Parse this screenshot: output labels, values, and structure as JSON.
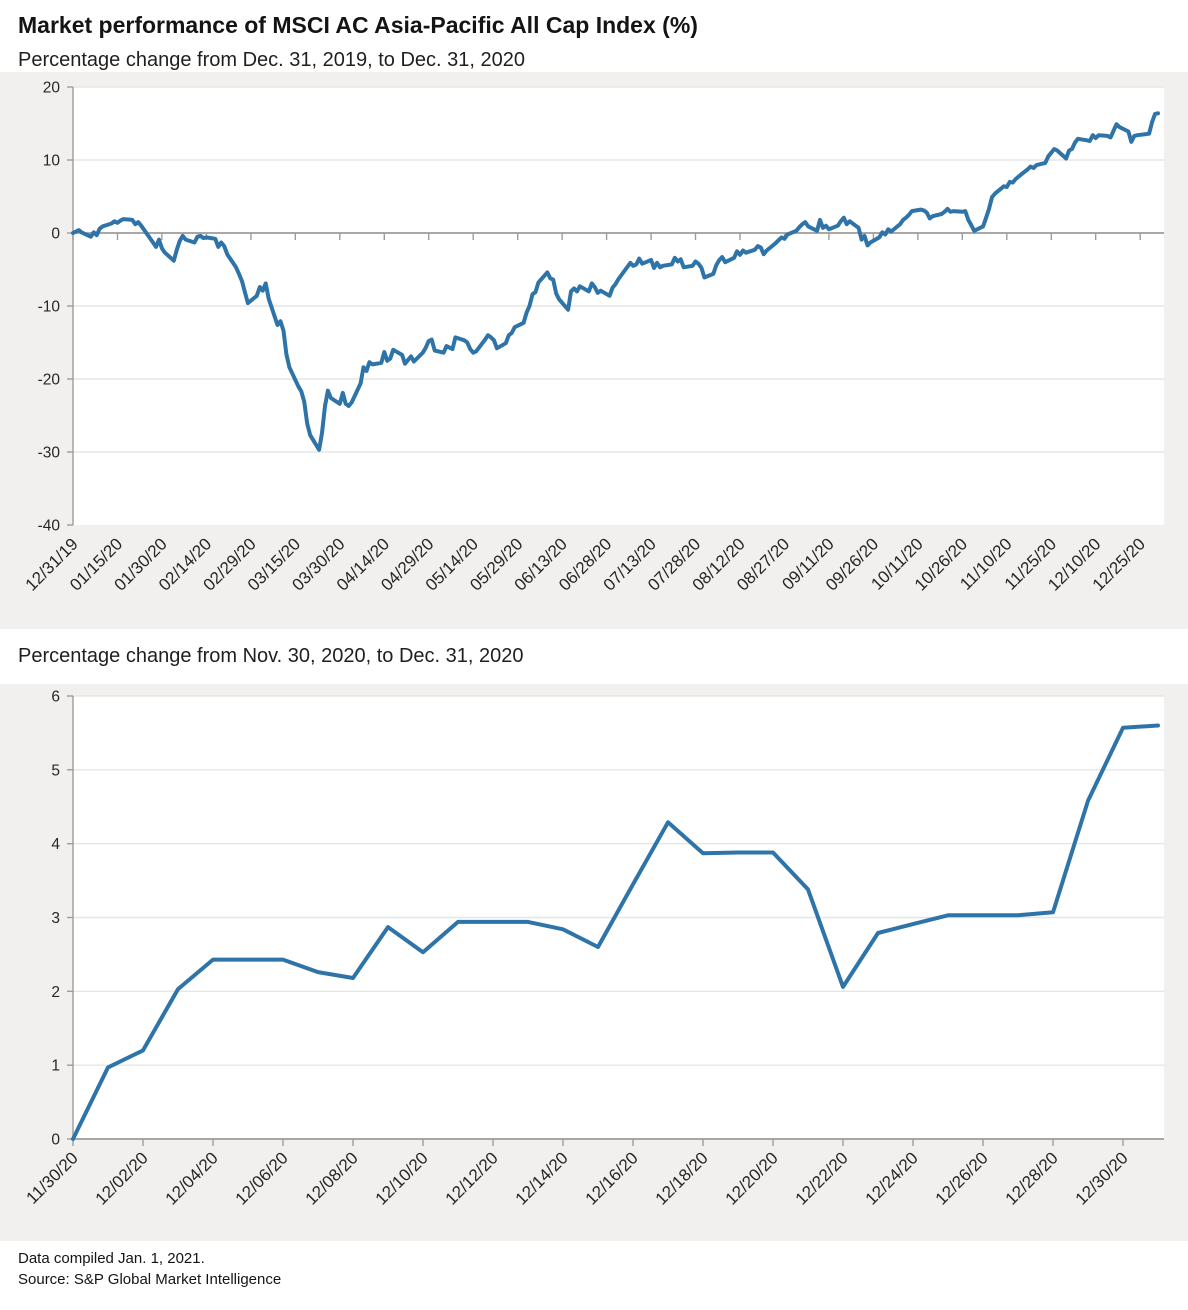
{
  "header": {
    "title": "Market performance of MSCI AC Asia-Pacific All Cap Index (%)"
  },
  "footer": {
    "compiled": "Data compiled Jan. 1, 2021.",
    "source": "Source: S&P Global Market Intelligence"
  },
  "colors": {
    "line": "#2e74a8",
    "axis": "#9d9c9a",
    "grid": "#e7e6e4",
    "panel_bg": "#f1f0ee",
    "plot_bg": "#ffffff",
    "tick_text": "#262626"
  },
  "chart_data": [
    {
      "id": "top",
      "type": "line",
      "title": "Percentage change from Dec. 31, 2019, to Dec. 31, 2020",
      "ylabel": "",
      "xlabel": "",
      "ylim": [
        -40,
        20
      ],
      "yticks": [
        20,
        10,
        0,
        -10,
        -20,
        -30,
        -40
      ],
      "grid_vals": [
        20,
        10,
        -10,
        -20,
        -30
      ],
      "axis_value": 0,
      "x_domain_days": 366,
      "xticks": [
        {
          "day": 0,
          "label": "12/31/19"
        },
        {
          "day": 15,
          "label": "01/15/20"
        },
        {
          "day": 30,
          "label": "01/30/20"
        },
        {
          "day": 45,
          "label": "02/14/20"
        },
        {
          "day": 60,
          "label": "02/29/20"
        },
        {
          "day": 75,
          "label": "03/15/20"
        },
        {
          "day": 90,
          "label": "03/30/20"
        },
        {
          "day": 105,
          "label": "04/14/20"
        },
        {
          "day": 120,
          "label": "04/29/20"
        },
        {
          "day": 135,
          "label": "05/14/20"
        },
        {
          "day": 150,
          "label": "05/29/20"
        },
        {
          "day": 165,
          "label": "06/13/20"
        },
        {
          "day": 180,
          "label": "06/28/20"
        },
        {
          "day": 195,
          "label": "07/13/20"
        },
        {
          "day": 210,
          "label": "07/28/20"
        },
        {
          "day": 225,
          "label": "08/12/20"
        },
        {
          "day": 240,
          "label": "08/27/20"
        },
        {
          "day": 255,
          "label": "09/11/20"
        },
        {
          "day": 270,
          "label": "09/26/20"
        },
        {
          "day": 285,
          "label": "10/11/20"
        },
        {
          "day": 300,
          "label": "10/26/20"
        },
        {
          "day": 315,
          "label": "11/10/20"
        },
        {
          "day": 330,
          "label": "11/25/20"
        },
        {
          "day": 345,
          "label": "12/10/20"
        },
        {
          "day": 360,
          "label": "12/25/20"
        }
      ],
      "points": [
        [
          0,
          0.0
        ],
        [
          2,
          0.4
        ],
        [
          3,
          0.05
        ],
        [
          6,
          -0.5
        ],
        [
          7,
          0.1
        ],
        [
          8,
          -0.3
        ],
        [
          9,
          0.6
        ],
        [
          10,
          0.9
        ],
        [
          13,
          1.3
        ],
        [
          14,
          1.6
        ],
        [
          15,
          1.4
        ],
        [
          16,
          1.7
        ],
        [
          17,
          1.9
        ],
        [
          20,
          1.8
        ],
        [
          21,
          1.2
        ],
        [
          22,
          1.5
        ],
        [
          23,
          1.0
        ],
        [
          27,
          -1.3
        ],
        [
          28,
          -1.9
        ],
        [
          29,
          -0.9
        ],
        [
          30,
          -2.1
        ],
        [
          31,
          -2.7
        ],
        [
          34,
          -3.8
        ],
        [
          35,
          -2.3
        ],
        [
          36,
          -1.1
        ],
        [
          37,
          -0.4
        ],
        [
          38,
          -0.9
        ],
        [
          41,
          -1.3
        ],
        [
          42,
          -0.5
        ],
        [
          43,
          -0.4
        ],
        [
          44,
          -0.7
        ],
        [
          45,
          -0.6
        ],
        [
          48,
          -0.8
        ],
        [
          49,
          -1.9
        ],
        [
          50,
          -1.3
        ],
        [
          51,
          -1.8
        ],
        [
          52,
          -2.9
        ],
        [
          55,
          -4.7
        ],
        [
          56,
          -5.6
        ],
        [
          57,
          -6.6
        ],
        [
          58,
          -8.1
        ],
        [
          59,
          -9.6
        ],
        [
          62,
          -8.6
        ],
        [
          63,
          -7.4
        ],
        [
          64,
          -7.9
        ],
        [
          65,
          -6.9
        ],
        [
          66,
          -9.0
        ],
        [
          69,
          -12.6
        ],
        [
          70,
          -12.1
        ],
        [
          71,
          -13.4
        ],
        [
          72,
          -16.6
        ],
        [
          73,
          -18.4
        ],
        [
          76,
          -21.0
        ],
        [
          77,
          -21.7
        ],
        [
          78,
          -23.1
        ],
        [
          79,
          -26.1
        ],
        [
          80,
          -27.7
        ],
        [
          83,
          -29.7
        ],
        [
          84,
          -27.4
        ],
        [
          85,
          -23.7
        ],
        [
          86,
          -21.6
        ],
        [
          87,
          -22.6
        ],
        [
          90,
          -23.4
        ],
        [
          91,
          -21.9
        ],
        [
          92,
          -23.4
        ],
        [
          93,
          -23.7
        ],
        [
          94,
          -23.2
        ],
        [
          97,
          -20.6
        ],
        [
          98,
          -18.4
        ],
        [
          99,
          -18.9
        ],
        [
          100,
          -17.7
        ],
        [
          101,
          -18.0
        ],
        [
          104,
          -17.8
        ],
        [
          105,
          -16.3
        ],
        [
          106,
          -17.5
        ],
        [
          107,
          -17.2
        ],
        [
          108,
          -16.0
        ],
        [
          111,
          -16.7
        ],
        [
          112,
          -17.9
        ],
        [
          113,
          -17.4
        ],
        [
          114,
          -16.9
        ],
        [
          115,
          -17.6
        ],
        [
          118,
          -16.4
        ],
        [
          119,
          -15.7
        ],
        [
          120,
          -14.8
        ],
        [
          121,
          -14.6
        ],
        [
          122,
          -16.1
        ],
        [
          125,
          -16.4
        ],
        [
          126,
          -15.5
        ],
        [
          127,
          -15.7
        ],
        [
          128,
          -15.9
        ],
        [
          129,
          -14.3
        ],
        [
          132,
          -14.7
        ],
        [
          133,
          -15.0
        ],
        [
          134,
          -15.9
        ],
        [
          135,
          -16.4
        ],
        [
          136,
          -16.2
        ],
        [
          139,
          -14.6
        ],
        [
          140,
          -14.0
        ],
        [
          141,
          -14.3
        ],
        [
          142,
          -14.7
        ],
        [
          143,
          -15.8
        ],
        [
          146,
          -15.1
        ],
        [
          147,
          -14.0
        ],
        [
          148,
          -13.7
        ],
        [
          149,
          -12.9
        ],
        [
          152,
          -12.3
        ],
        [
          153,
          -10.9
        ],
        [
          154,
          -10.0
        ],
        [
          155,
          -8.4
        ],
        [
          156,
          -8.1
        ],
        [
          157,
          -6.8
        ],
        [
          160,
          -5.4
        ],
        [
          161,
          -6.2
        ],
        [
          162,
          -6.4
        ],
        [
          163,
          -8.3
        ],
        [
          164,
          -9.1
        ],
        [
          167,
          -10.5
        ],
        [
          168,
          -8.0
        ],
        [
          169,
          -7.6
        ],
        [
          170,
          -8.0
        ],
        [
          171,
          -7.3
        ],
        [
          174,
          -8.0
        ],
        [
          175,
          -6.9
        ],
        [
          176,
          -7.4
        ],
        [
          177,
          -8.2
        ],
        [
          178,
          -7.9
        ],
        [
          181,
          -8.6
        ],
        [
          182,
          -7.5
        ],
        [
          183,
          -7.0
        ],
        [
          184,
          -6.3
        ],
        [
          188,
          -4.1
        ],
        [
          189,
          -4.5
        ],
        [
          190,
          -4.3
        ],
        [
          191,
          -3.5
        ],
        [
          192,
          -4.2
        ],
        [
          195,
          -3.7
        ],
        [
          196,
          -4.8
        ],
        [
          197,
          -4.1
        ],
        [
          198,
          -4.7
        ],
        [
          199,
          -4.5
        ],
        [
          202,
          -4.3
        ],
        [
          203,
          -3.4
        ],
        [
          204,
          -3.9
        ],
        [
          205,
          -3.6
        ],
        [
          206,
          -4.7
        ],
        [
          209,
          -4.5
        ],
        [
          210,
          -3.9
        ],
        [
          211,
          -4.2
        ],
        [
          212,
          -4.8
        ],
        [
          213,
          -6.1
        ],
        [
          216,
          -5.6
        ],
        [
          217,
          -4.4
        ],
        [
          218,
          -3.7
        ],
        [
          219,
          -3.3
        ],
        [
          220,
          -4.0
        ],
        [
          223,
          -3.4
        ],
        [
          224,
          -2.5
        ],
        [
          225,
          -3.0
        ],
        [
          226,
          -2.4
        ],
        [
          227,
          -2.7
        ],
        [
          230,
          -2.3
        ],
        [
          231,
          -1.8
        ],
        [
          232,
          -2.0
        ],
        [
          233,
          -2.9
        ],
        [
          234,
          -2.4
        ],
        [
          237,
          -1.4
        ],
        [
          238,
          -1.0
        ],
        [
          239,
          -0.6
        ],
        [
          240,
          -0.8
        ],
        [
          241,
          -0.2
        ],
        [
          244,
          0.3
        ],
        [
          245,
          0.8
        ],
        [
          246,
          1.2
        ],
        [
          247,
          1.5
        ],
        [
          248,
          0.9
        ],
        [
          251,
          0.3
        ],
        [
          252,
          1.8
        ],
        [
          253,
          0.7
        ],
        [
          254,
          1.0
        ],
        [
          255,
          0.5
        ],
        [
          258,
          1.0
        ],
        [
          259,
          1.6
        ],
        [
          260,
          2.1
        ],
        [
          261,
          1.2
        ],
        [
          262,
          1.6
        ],
        [
          265,
          0.7
        ],
        [
          266,
          -0.9
        ],
        [
          267,
          -0.4
        ],
        [
          268,
          -1.7
        ],
        [
          269,
          -1.3
        ],
        [
          272,
          -0.6
        ],
        [
          273,
          0.1
        ],
        [
          274,
          -0.2
        ],
        [
          275,
          0.5
        ],
        [
          276,
          0.2
        ],
        [
          279,
          1.2
        ],
        [
          280,
          1.8
        ],
        [
          281,
          2.1
        ],
        [
          282,
          2.5
        ],
        [
          283,
          3.0
        ],
        [
          286,
          3.2
        ],
        [
          287,
          3.1
        ],
        [
          288,
          2.8
        ],
        [
          289,
          2.0
        ],
        [
          290,
          2.3
        ],
        [
          293,
          2.6
        ],
        [
          294,
          2.9
        ],
        [
          295,
          3.3
        ],
        [
          296,
          2.9
        ],
        [
          297,
          3.0
        ],
        [
          300,
          2.9
        ],
        [
          301,
          3.0
        ],
        [
          302,
          1.8
        ],
        [
          303,
          1.1
        ],
        [
          304,
          0.3
        ],
        [
          307,
          0.9
        ],
        [
          308,
          2.1
        ],
        [
          309,
          3.3
        ],
        [
          310,
          4.9
        ],
        [
          311,
          5.4
        ],
        [
          314,
          6.4
        ],
        [
          315,
          6.3
        ],
        [
          316,
          7.0
        ],
        [
          317,
          6.9
        ],
        [
          318,
          7.4
        ],
        [
          321,
          8.4
        ],
        [
          322,
          8.7
        ],
        [
          323,
          9.1
        ],
        [
          324,
          8.9
        ],
        [
          325,
          9.3
        ],
        [
          328,
          9.6
        ],
        [
          329,
          10.5
        ],
        [
          330,
          11.0
        ],
        [
          331,
          11.5
        ],
        [
          332,
          11.3
        ],
        [
          335,
          10.2
        ],
        [
          336,
          11.3
        ],
        [
          337,
          11.5
        ],
        [
          338,
          12.4
        ],
        [
          339,
          12.9
        ],
        [
          342,
          12.7
        ],
        [
          343,
          12.6
        ],
        [
          344,
          13.4
        ],
        [
          345,
          13.0
        ],
        [
          346,
          13.4
        ],
        [
          349,
          13.3
        ],
        [
          350,
          13.1
        ],
        [
          351,
          14.0
        ],
        [
          352,
          14.9
        ],
        [
          353,
          14.5
        ],
        [
          356,
          13.9
        ],
        [
          357,
          12.5
        ],
        [
          358,
          13.3
        ],
        [
          359,
          13.4
        ],
        [
          363,
          13.6
        ],
        [
          364,
          15.2
        ],
        [
          365,
          16.3
        ],
        [
          366,
          16.4
        ]
      ]
    },
    {
      "id": "bottom",
      "type": "line",
      "title": "Percentage change from Nov. 30, 2020, to Dec. 31, 2020",
      "ylabel": "",
      "xlabel": "",
      "ylim": [
        0,
        6
      ],
      "yticks": [
        6,
        5,
        4,
        3,
        2,
        1,
        0
      ],
      "grid_vals": [
        6,
        5,
        4,
        3,
        2,
        1
      ],
      "axis_value": 0,
      "x_domain_days": 31,
      "xticks": [
        {
          "day": 0,
          "label": "11/30/20"
        },
        {
          "day": 2,
          "label": "12/02/20"
        },
        {
          "day": 4,
          "label": "12/04/20"
        },
        {
          "day": 6,
          "label": "12/06/20"
        },
        {
          "day": 8,
          "label": "12/08/20"
        },
        {
          "day": 10,
          "label": "12/10/20"
        },
        {
          "day": 12,
          "label": "12/12/20"
        },
        {
          "day": 14,
          "label": "12/14/20"
        },
        {
          "day": 16,
          "label": "12/16/20"
        },
        {
          "day": 18,
          "label": "12/18/20"
        },
        {
          "day": 20,
          "label": "12/20/20"
        },
        {
          "day": 22,
          "label": "12/22/20"
        },
        {
          "day": 24,
          "label": "12/24/20"
        },
        {
          "day": 26,
          "label": "12/26/20"
        },
        {
          "day": 28,
          "label": "12/28/20"
        },
        {
          "day": 30,
          "label": "12/30/20"
        }
      ],
      "points": [
        [
          0,
          0.0
        ],
        [
          1,
          0.97
        ],
        [
          2,
          1.2
        ],
        [
          3,
          2.03
        ],
        [
          4,
          2.43
        ],
        [
          5,
          2.43
        ],
        [
          6,
          2.43
        ],
        [
          7,
          2.26
        ],
        [
          8,
          2.18
        ],
        [
          9,
          2.87
        ],
        [
          10,
          2.53
        ],
        [
          11,
          2.94
        ],
        [
          12,
          2.94
        ],
        [
          13,
          2.94
        ],
        [
          14,
          2.84
        ],
        [
          15,
          2.6
        ],
        [
          16,
          3.45
        ],
        [
          17,
          4.29
        ],
        [
          18,
          3.87
        ],
        [
          19,
          3.88
        ],
        [
          20,
          3.88
        ],
        [
          21,
          3.38
        ],
        [
          22,
          2.06
        ],
        [
          23,
          2.79
        ],
        [
          24,
          2.91
        ],
        [
          25,
          3.03
        ],
        [
          26,
          3.03
        ],
        [
          27,
          3.03
        ],
        [
          28,
          3.07
        ],
        [
          29,
          4.58
        ],
        [
          30,
          5.57
        ],
        [
          31,
          5.6
        ]
      ]
    }
  ]
}
